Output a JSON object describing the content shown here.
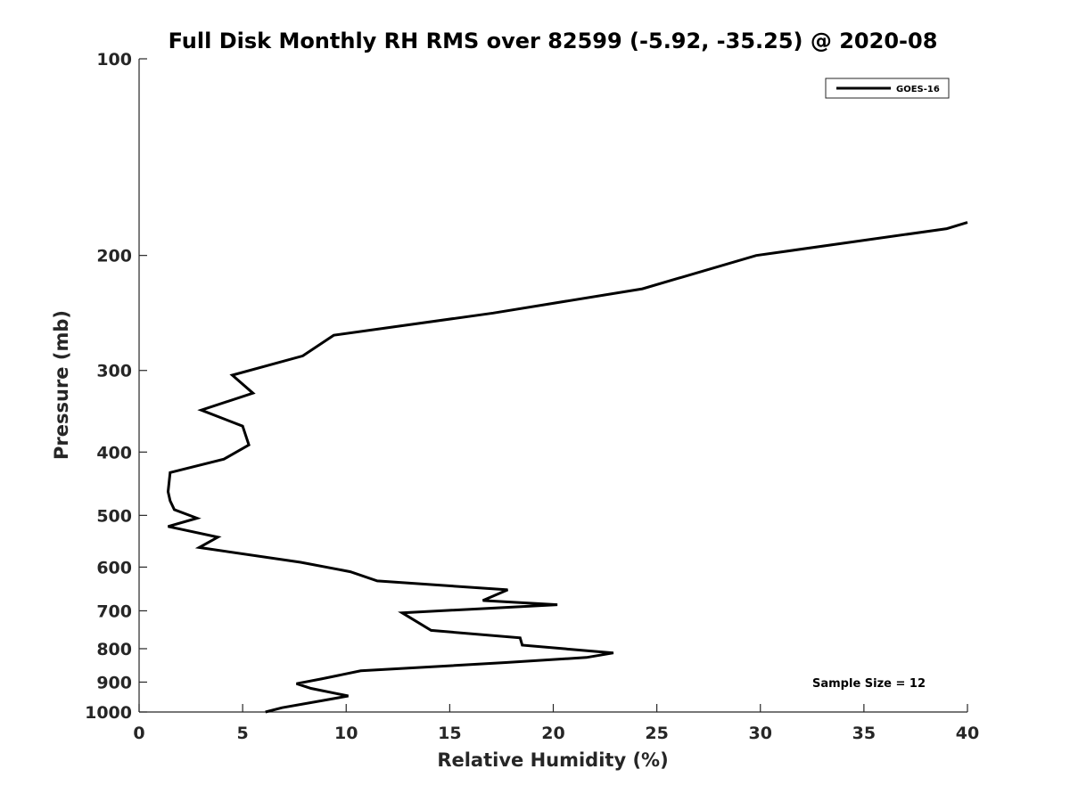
{
  "chart_data": {
    "type": "line",
    "title": "Full Disk Monthly RH RMS over 82599 (-5.92, -35.25) @ 2020-08",
    "xlabel": "Relative Humidity (%)",
    "ylabel": "Pressure (mb)",
    "xlim": [
      0,
      40
    ],
    "ylim": [
      100,
      1000
    ],
    "y_scale": "log",
    "y_reversed": true,
    "grid": false,
    "legend_position": "top-right",
    "xticks": [
      "0",
      "5",
      "10",
      "15",
      "20",
      "25",
      "30",
      "35",
      "40"
    ],
    "yticks": [
      "100",
      "200",
      "300",
      "400",
      "500",
      "600",
      "700",
      "800",
      "900",
      "1000"
    ],
    "series": [
      {
        "name": "GOES-16",
        "color": "#000000",
        "x": [
          6.1,
          6.9,
          8.9,
          10.1,
          8.3,
          7.6,
          8.8,
          10.7,
          17.7,
          21.6,
          22.9,
          18.5,
          18.4,
          14.1,
          12.7,
          20.2,
          16.6,
          17.8,
          11.5,
          10.2,
          7.8,
          2.9,
          3.8,
          1.4,
          2.8,
          1.7,
          1.5,
          1.4,
          1.5,
          4.1,
          5.3,
          5.0,
          3.0,
          5.5,
          4.5,
          7.9,
          9.4,
          17.1,
          24.3,
          29.8,
          39.0,
          40.0
        ],
        "y": [
          1000,
          985,
          960,
          945,
          920,
          905,
          890,
          865,
          840,
          825,
          812,
          790,
          770,
          750,
          705,
          685,
          675,
          650,
          630,
          610,
          590,
          560,
          540,
          520,
          505,
          490,
          475,
          460,
          430,
          410,
          390,
          365,
          345,
          325,
          305,
          285,
          265,
          245,
          225,
          200,
          182,
          178
        ]
      }
    ],
    "annotations": [
      {
        "text": "Sample Size = 12"
      }
    ]
  }
}
